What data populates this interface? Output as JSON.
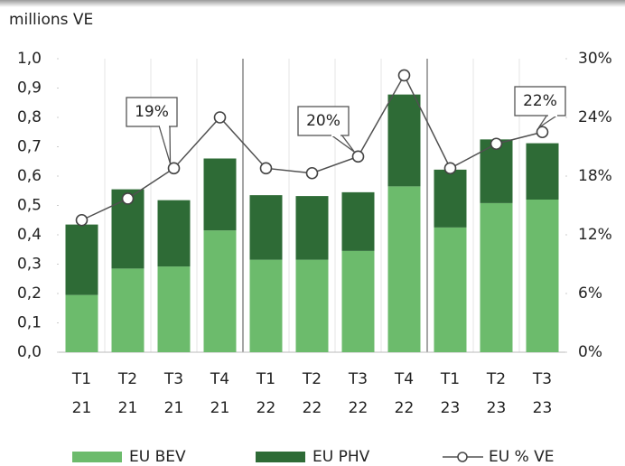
{
  "chart_data": {
    "type": "bar",
    "stacked": true,
    "ylabel": "millions VE",
    "categories": [
      [
        "T1",
        "21"
      ],
      [
        "T2",
        "21"
      ],
      [
        "T3",
        "21"
      ],
      [
        "T4",
        "21"
      ],
      [
        "T1",
        "22"
      ],
      [
        "T2",
        "22"
      ],
      [
        "T3",
        "22"
      ],
      [
        "T4",
        "22"
      ],
      [
        "T1",
        "23"
      ],
      [
        "T2",
        "23"
      ],
      [
        "T3",
        "23"
      ]
    ],
    "series": [
      {
        "name": "EU BEV",
        "color": "#6cbb6c",
        "type": "bar",
        "values": [
          0.195,
          0.285,
          0.292,
          0.415,
          0.315,
          0.315,
          0.345,
          0.565,
          0.425,
          0.508,
          0.52
        ]
      },
      {
        "name": "EU PHV",
        "color": "#2e6b36",
        "type": "bar",
        "values": [
          0.24,
          0.27,
          0.226,
          0.245,
          0.22,
          0.217,
          0.2,
          0.313,
          0.197,
          0.217,
          0.192
        ]
      },
      {
        "name": "EU % VE",
        "color": "#505050",
        "type": "line",
        "axis": "y2",
        "values": [
          13.5,
          15.7,
          18.8,
          24,
          18.8,
          18.3,
          20,
          28.3,
          18.8,
          21.3,
          22.5
        ]
      }
    ],
    "annotations": [
      "19%",
      "20%",
      "22%"
    ],
    "ylim": [
      0,
      1
    ],
    "yticks": [
      {
        "value": 0,
        "label": "0,0"
      },
      {
        "value": 0.1,
        "label": "0,1"
      },
      {
        "value": 0.2,
        "label": "0,2"
      },
      {
        "value": 0.3,
        "label": "0,3"
      },
      {
        "value": 0.4,
        "label": "0,4"
      },
      {
        "value": 0.5,
        "label": "0,5"
      },
      {
        "value": 0.6,
        "label": "0,6"
      },
      {
        "value": 0.7,
        "label": "0,7"
      },
      {
        "value": 0.8,
        "label": "0,8"
      },
      {
        "value": 0.9,
        "label": "0,9"
      },
      {
        "value": 1,
        "label": "1,0"
      }
    ],
    "y2lim": [
      0,
      30
    ],
    "y2ticks": [
      {
        "value": 0,
        "label": "0%"
      },
      {
        "value": 6,
        "label": "6%"
      },
      {
        "value": 12,
        "label": "12%"
      },
      {
        "value": 18,
        "label": "18%"
      },
      {
        "value": 24,
        "label": "24%"
      },
      {
        "value": 30,
        "label": "30%"
      }
    ],
    "legend": "bottom"
  }
}
